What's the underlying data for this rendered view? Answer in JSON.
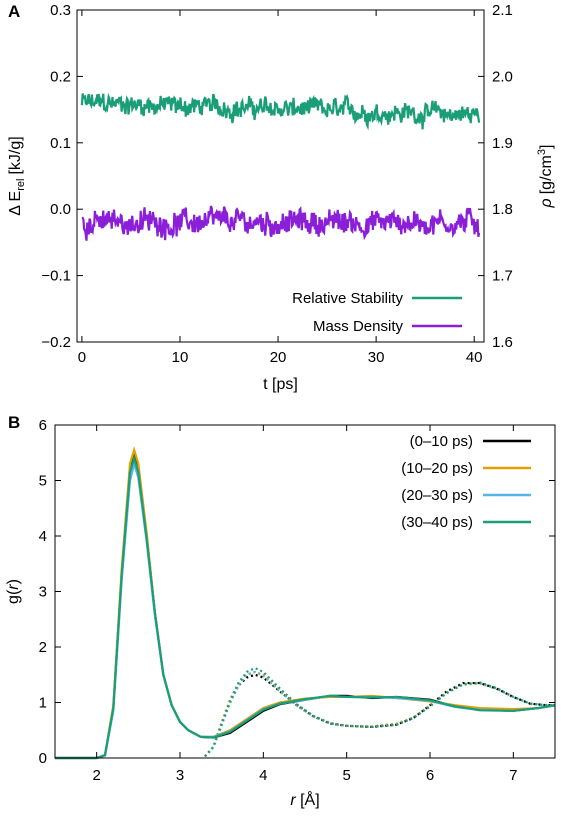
{
  "chart_data": [
    {
      "panel": "A",
      "type": "line",
      "xlabel": "t [ps]",
      "ylabel_left": "Δ E_rel [kJ/g]",
      "ylabel_right": "ρ [g/cm³]",
      "xlim": [
        -0.5,
        41
      ],
      "ylim_left": [
        -0.2,
        0.3
      ],
      "ylim_right": [
        1.6,
        2.1
      ],
      "xticks": [
        "0",
        "10",
        "20",
        "30",
        "40"
      ],
      "yticks_left": [
        "−0.2",
        "−0.1",
        "0.0",
        "0.1",
        "0.2",
        "0.3"
      ],
      "yticks_right": [
        "1.6",
        "1.7",
        "1.8",
        "1.9",
        "2.0",
        "2.1"
      ],
      "legend_position": "bottom-right",
      "series": [
        {
          "name": "Relative Stability",
          "axis": "left",
          "color": "#1a9e77",
          "mean_start": 0.16,
          "mean_end": 0.142,
          "fluctuation": 0.015,
          "x_range": [
            0,
            40.5
          ]
        },
        {
          "name": "Mass Density",
          "axis": "right",
          "color": "#8b1fd8",
          "mean": 1.78,
          "fluctuation": 0.018,
          "x_range": [
            0,
            40.5
          ]
        }
      ]
    },
    {
      "panel": "B",
      "type": "line",
      "xlabel": "r [Å]",
      "ylabel": "g(r)",
      "xlim": [
        1.5,
        7.5
      ],
      "ylim": [
        0,
        6
      ],
      "xticks": [
        "2",
        "3",
        "4",
        "5",
        "6",
        "7"
      ],
      "yticks": [
        "0",
        "1",
        "2",
        "3",
        "4",
        "5",
        "6"
      ],
      "legend_position": "top-right",
      "series": [
        {
          "name": "(0–10 ps)",
          "color": "#000000",
          "solid": [
            [
              1.5,
              0
            ],
            [
              2.0,
              0
            ],
            [
              2.1,
              0.05
            ],
            [
              2.2,
              0.9
            ],
            [
              2.3,
              3.3
            ],
            [
              2.4,
              5.2
            ],
            [
              2.45,
              5.45
            ],
            [
              2.5,
              5.2
            ],
            [
              2.6,
              4.0
            ],
            [
              2.7,
              2.6
            ],
            [
              2.8,
              1.5
            ],
            [
              2.9,
              0.95
            ],
            [
              3.0,
              0.65
            ],
            [
              3.1,
              0.5
            ],
            [
              3.25,
              0.38
            ],
            [
              3.4,
              0.37
            ],
            [
              3.6,
              0.45
            ],
            [
              3.8,
              0.65
            ],
            [
              4.0,
              0.85
            ],
            [
              4.2,
              0.97
            ],
            [
              4.5,
              1.05
            ],
            [
              4.8,
              1.12
            ],
            [
              5.0,
              1.12
            ],
            [
              5.3,
              1.08
            ],
            [
              5.6,
              1.1
            ],
            [
              6.0,
              1.05
            ],
            [
              6.3,
              0.93
            ],
            [
              6.6,
              0.87
            ],
            [
              7.0,
              0.85
            ],
            [
              7.3,
              0.9
            ],
            [
              7.5,
              0.95
            ]
          ],
          "dotted": [
            [
              3.3,
              0.03
            ],
            [
              3.4,
              0.2
            ],
            [
              3.5,
              0.6
            ],
            [
              3.6,
              1.0
            ],
            [
              3.7,
              1.3
            ],
            [
              3.8,
              1.45
            ],
            [
              3.9,
              1.5
            ],
            [
              4.0,
              1.45
            ],
            [
              4.2,
              1.2
            ],
            [
              4.4,
              0.95
            ],
            [
              4.6,
              0.75
            ],
            [
              4.8,
              0.62
            ],
            [
              5.0,
              0.58
            ],
            [
              5.3,
              0.56
            ],
            [
              5.6,
              0.6
            ],
            [
              5.8,
              0.72
            ],
            [
              6.0,
              0.95
            ],
            [
              6.2,
              1.2
            ],
            [
              6.4,
              1.35
            ],
            [
              6.6,
              1.35
            ],
            [
              6.8,
              1.25
            ],
            [
              7.0,
              1.1
            ],
            [
              7.2,
              0.98
            ],
            [
              7.4,
              0.95
            ],
            [
              7.5,
              0.95
            ]
          ]
        },
        {
          "name": "(10–20 ps)",
          "color": "#e69f00",
          "solid": [
            [
              1.5,
              0
            ],
            [
              2.0,
              0
            ],
            [
              2.1,
              0.05
            ],
            [
              2.2,
              0.95
            ],
            [
              2.3,
              3.4
            ],
            [
              2.4,
              5.3
            ],
            [
              2.45,
              5.55
            ],
            [
              2.5,
              5.3
            ],
            [
              2.6,
              4.05
            ],
            [
              2.7,
              2.6
            ],
            [
              2.8,
              1.5
            ],
            [
              2.9,
              0.95
            ],
            [
              3.0,
              0.65
            ],
            [
              3.1,
              0.5
            ],
            [
              3.25,
              0.38
            ],
            [
              3.4,
              0.38
            ],
            [
              3.6,
              0.5
            ],
            [
              3.8,
              0.7
            ],
            [
              4.0,
              0.9
            ],
            [
              4.2,
              1.0
            ],
            [
              4.5,
              1.07
            ],
            [
              4.8,
              1.1
            ],
            [
              5.0,
              1.1
            ],
            [
              5.3,
              1.12
            ],
            [
              5.6,
              1.08
            ],
            [
              6.0,
              1.02
            ],
            [
              6.3,
              0.95
            ],
            [
              6.6,
              0.9
            ],
            [
              7.0,
              0.88
            ],
            [
              7.3,
              0.9
            ],
            [
              7.5,
              0.95
            ]
          ],
          "dotted": [
            [
              3.3,
              0.03
            ],
            [
              3.4,
              0.2
            ],
            [
              3.5,
              0.65
            ],
            [
              3.6,
              1.05
            ],
            [
              3.7,
              1.35
            ],
            [
              3.8,
              1.5
            ],
            [
              3.9,
              1.55
            ],
            [
              4.0,
              1.5
            ],
            [
              4.2,
              1.22
            ],
            [
              4.4,
              0.95
            ],
            [
              4.6,
              0.75
            ],
            [
              4.8,
              0.63
            ],
            [
              5.0,
              0.58
            ],
            [
              5.3,
              0.57
            ],
            [
              5.6,
              0.62
            ],
            [
              5.8,
              0.73
            ],
            [
              6.0,
              0.95
            ],
            [
              6.2,
              1.18
            ],
            [
              6.4,
              1.32
            ],
            [
              6.6,
              1.34
            ],
            [
              6.8,
              1.25
            ],
            [
              7.0,
              1.1
            ],
            [
              7.2,
              0.98
            ],
            [
              7.4,
              0.95
            ],
            [
              7.5,
              0.95
            ]
          ]
        },
        {
          "name": "(20–30 ps)",
          "color": "#56b4e9",
          "solid": [
            [
              1.5,
              0
            ],
            [
              2.0,
              0
            ],
            [
              2.1,
              0.05
            ],
            [
              2.2,
              0.85
            ],
            [
              2.3,
              3.2
            ],
            [
              2.4,
              5.0
            ],
            [
              2.45,
              5.3
            ],
            [
              2.5,
              5.05
            ],
            [
              2.6,
              3.9
            ],
            [
              2.7,
              2.55
            ],
            [
              2.8,
              1.5
            ],
            [
              2.9,
              0.95
            ],
            [
              3.0,
              0.65
            ],
            [
              3.1,
              0.5
            ],
            [
              3.25,
              0.38
            ],
            [
              3.4,
              0.38
            ],
            [
              3.6,
              0.48
            ],
            [
              3.8,
              0.68
            ],
            [
              4.0,
              0.88
            ],
            [
              4.2,
              0.98
            ],
            [
              4.5,
              1.05
            ],
            [
              4.8,
              1.12
            ],
            [
              5.0,
              1.1
            ],
            [
              5.3,
              1.1
            ],
            [
              5.6,
              1.08
            ],
            [
              6.0,
              1.03
            ],
            [
              6.3,
              0.92
            ],
            [
              6.6,
              0.87
            ],
            [
              7.0,
              0.85
            ],
            [
              7.3,
              0.9
            ],
            [
              7.5,
              0.95
            ]
          ],
          "dotted": [
            [
              3.3,
              0.03
            ],
            [
              3.4,
              0.2
            ],
            [
              3.5,
              0.6
            ],
            [
              3.6,
              1.0
            ],
            [
              3.7,
              1.3
            ],
            [
              3.8,
              1.5
            ],
            [
              3.9,
              1.55
            ],
            [
              4.0,
              1.48
            ],
            [
              4.2,
              1.2
            ],
            [
              4.4,
              0.95
            ],
            [
              4.6,
              0.75
            ],
            [
              4.8,
              0.62
            ],
            [
              5.0,
              0.58
            ],
            [
              5.3,
              0.56
            ],
            [
              5.6,
              0.6
            ],
            [
              5.8,
              0.72
            ],
            [
              6.0,
              0.93
            ],
            [
              6.2,
              1.17
            ],
            [
              6.4,
              1.33
            ],
            [
              6.6,
              1.35
            ],
            [
              6.8,
              1.25
            ],
            [
              7.0,
              1.1
            ],
            [
              7.2,
              0.98
            ],
            [
              7.4,
              0.95
            ],
            [
              7.5,
              0.95
            ]
          ]
        },
        {
          "name": "(30–40 ps)",
          "color": "#1a9e77",
          "solid": [
            [
              1.5,
              0
            ],
            [
              2.0,
              0
            ],
            [
              2.1,
              0.05
            ],
            [
              2.2,
              0.9
            ],
            [
              2.3,
              3.3
            ],
            [
              2.4,
              5.15
            ],
            [
              2.45,
              5.4
            ],
            [
              2.5,
              5.15
            ],
            [
              2.6,
              3.95
            ],
            [
              2.7,
              2.6
            ],
            [
              2.8,
              1.5
            ],
            [
              2.9,
              0.95
            ],
            [
              3.0,
              0.65
            ],
            [
              3.1,
              0.5
            ],
            [
              3.25,
              0.38
            ],
            [
              3.4,
              0.37
            ],
            [
              3.6,
              0.47
            ],
            [
              3.8,
              0.67
            ],
            [
              4.0,
              0.87
            ],
            [
              4.2,
              0.98
            ],
            [
              4.5,
              1.06
            ],
            [
              4.8,
              1.12
            ],
            [
              5.0,
              1.1
            ],
            [
              5.3,
              1.09
            ],
            [
              5.6,
              1.1
            ],
            [
              6.0,
              1.04
            ],
            [
              6.3,
              0.93
            ],
            [
              6.6,
              0.86
            ],
            [
              7.0,
              0.85
            ],
            [
              7.3,
              0.9
            ],
            [
              7.5,
              0.95
            ]
          ],
          "dotted": [
            [
              3.3,
              0.03
            ],
            [
              3.4,
              0.2
            ],
            [
              3.5,
              0.62
            ],
            [
              3.6,
              1.02
            ],
            [
              3.7,
              1.35
            ],
            [
              3.8,
              1.55
            ],
            [
              3.9,
              1.62
            ],
            [
              4.0,
              1.55
            ],
            [
              4.2,
              1.25
            ],
            [
              4.4,
              0.97
            ],
            [
              4.6,
              0.76
            ],
            [
              4.8,
              0.63
            ],
            [
              5.0,
              0.58
            ],
            [
              5.3,
              0.56
            ],
            [
              5.6,
              0.6
            ],
            [
              5.8,
              0.72
            ],
            [
              6.0,
              0.93
            ],
            [
              6.2,
              1.17
            ],
            [
              6.4,
              1.33
            ],
            [
              6.6,
              1.36
            ],
            [
              6.8,
              1.26
            ],
            [
              7.0,
              1.1
            ],
            [
              7.2,
              0.98
            ],
            [
              7.4,
              0.95
            ],
            [
              7.5,
              0.95
            ]
          ]
        }
      ]
    }
  ],
  "labels": {
    "panelA": "A",
    "panelB": "B",
    "a_ylabel_main": "Δ E",
    "a_ylabel_sub": "rel",
    "a_ylabel_unit": "[kJ/g]",
    "a_yrlabel_main": "ρ",
    "a_yrlabel_unit": "[g/cm",
    "a_yrlabel_sup": "3",
    "a_yrlabel_close": "]",
    "b_ylabel": "g(",
    "b_ylabel_r": "r",
    "b_ylabel_close": ")",
    "b_xlabel_r": "r",
    "b_xlabel_unit": " [Å]"
  }
}
